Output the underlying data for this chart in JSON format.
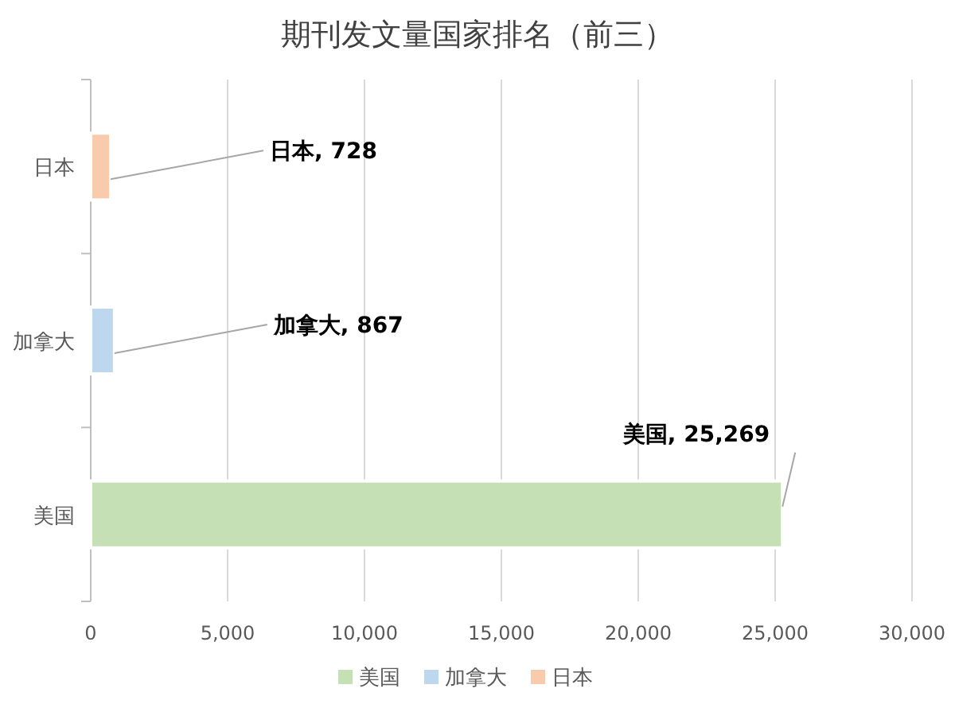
{
  "chart_data": {
    "type": "bar",
    "orientation": "horizontal",
    "title": "期刊发文量国家排名（前三）",
    "categories": [
      "日本",
      "加拿大",
      "美国"
    ],
    "series": [
      {
        "name": "美国",
        "color": "#c5e0b4",
        "values": [
          null,
          null,
          25269
        ],
        "value_labels": [
          null,
          null,
          "美国, 25,269"
        ]
      },
      {
        "name": "加拿大",
        "color": "#bdd7ee",
        "values": [
          null,
          867,
          null
        ],
        "value_labels": [
          null,
          "加拿大, 867",
          null
        ]
      },
      {
        "name": "日本",
        "color": "#f8cbad",
        "values": [
          728,
          null,
          null
        ],
        "value_labels": [
          "日本, 728",
          null,
          null
        ]
      }
    ],
    "xlim": [
      0,
      30000
    ],
    "xticks": [
      0,
      {
        "value": 5000,
        "label": "5,000"
      },
      {
        "value": 10000,
        "label": "10,000"
      },
      {
        "value": 15000,
        "label": "15,000"
      },
      {
        "value": 20000,
        "label": "20,000"
      },
      {
        "value": 25000,
        "label": "25,000"
      },
      {
        "value": 30000,
        "label": "30,000"
      }
    ],
    "grid": "x",
    "legend": "bottom"
  }
}
